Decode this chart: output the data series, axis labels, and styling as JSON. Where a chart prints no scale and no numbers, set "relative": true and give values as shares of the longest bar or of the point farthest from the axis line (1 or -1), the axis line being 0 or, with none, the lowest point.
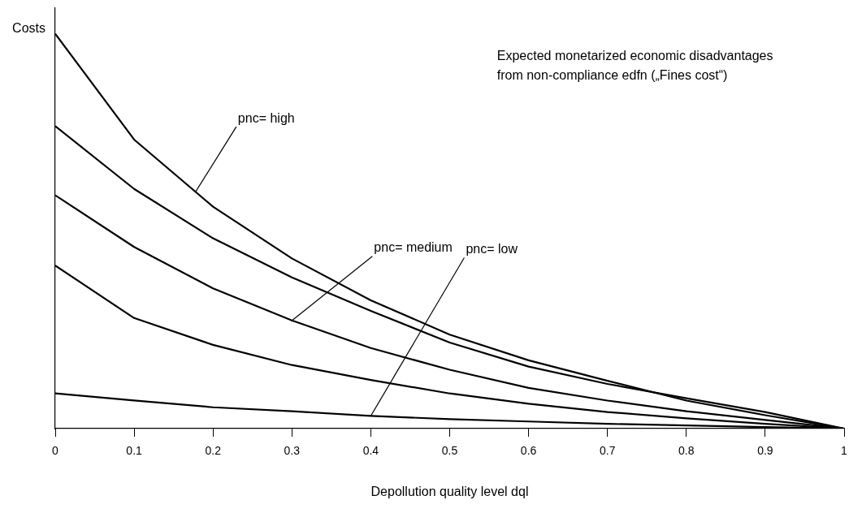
{
  "chart_data": {
    "type": "line",
    "relative": true,
    "xlabel": "Depollution quality level dql",
    "ylabel": "Costs",
    "x": [
      0,
      0.1,
      0.2,
      0.3,
      0.4,
      0.5,
      0.6,
      0.7,
      0.8,
      0.9,
      1
    ],
    "xlim": [
      0,
      1
    ],
    "xticks": [
      0,
      0.1,
      0.2,
      0.3,
      0.4,
      0.5,
      0.6,
      0.7,
      0.8,
      0.9,
      1
    ],
    "series": [
      {
        "color": "#000000",
        "values": [
          1,
          0.732,
          0.562,
          0.431,
          0.325,
          0.238,
          0.173,
          0.121,
          0.071,
          0.034,
          0
        ]
      },
      {
        "color": "#000000",
        "values": [
          0.766,
          0.607,
          0.482,
          0.383,
          0.298,
          0.218,
          0.157,
          0.113,
          0.077,
          0.042,
          0
        ]
      },
      {
        "color": "#000000",
        "values": [
          0.591,
          0.46,
          0.355,
          0.274,
          0.204,
          0.149,
          0.103,
          0.071,
          0.044,
          0.022,
          0
        ]
      },
      {
        "color": "#000000",
        "values": [
          0.413,
          0.28,
          0.212,
          0.161,
          0.123,
          0.089,
          0.063,
          0.042,
          0.026,
          0.012,
          0
        ]
      },
      {
        "color": "#000000",
        "values": [
          0.089,
          0.071,
          0.054,
          0.044,
          0.032,
          0.024,
          0.018,
          0.012,
          0.008,
          0.004,
          0
        ]
      }
    ],
    "annotations": [
      {
        "text": "pnc= high",
        "x": 0.178,
        "y": 0.6
      },
      {
        "text": "pnc= medium",
        "x": 0.299,
        "y": 0.272
      },
      {
        "text": "pnc= low",
        "x": 0.4,
        "y": 0.032
      },
      "Expected monetarized economic disadvantages\nfrom non-compliance edfn („Fines cost“)"
    ],
    "grid": false,
    "legend": false,
    "marker": "none",
    "line_style": "solid"
  }
}
